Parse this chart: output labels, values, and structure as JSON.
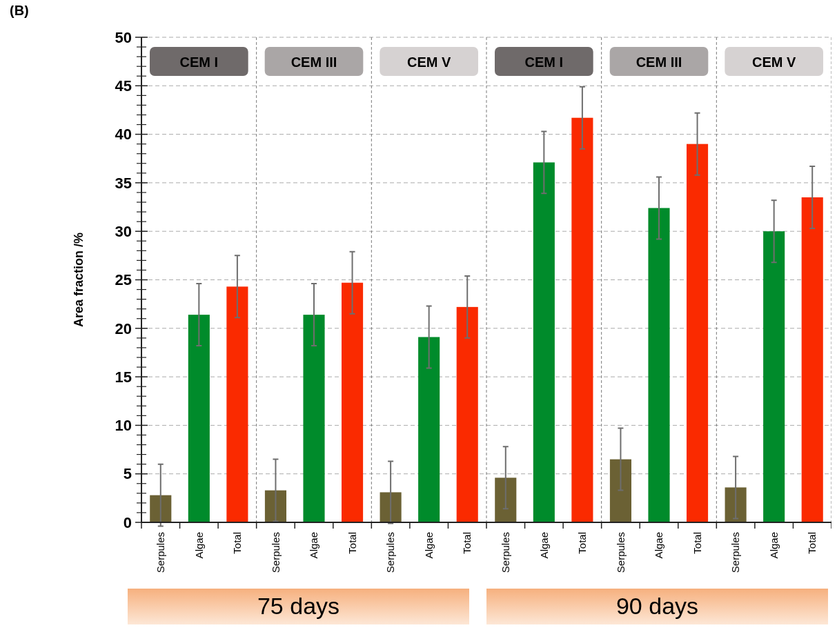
{
  "chart_data": {
    "type": "bar",
    "ylabel": "Area fraction /%",
    "categories": [
      "Serpules",
      "Algae",
      "Total",
      "Serpules",
      "Algae",
      "Total",
      "Serpules",
      "Algae",
      "Total",
      "Serpules",
      "Algae",
      "Total",
      "Serpules",
      "Algae",
      "Total",
      "Serpules",
      "Algae",
      "Total"
    ],
    "values": [
      2.8,
      21.4,
      24.3,
      3.3,
      21.4,
      24.7,
      3.1,
      19.1,
      22.2,
      4.6,
      37.1,
      41.7,
      6.5,
      32.4,
      39.0,
      3.6,
      30.0,
      33.5
    ],
    "errors": [
      3.2,
      3.2,
      3.2,
      3.2,
      3.2,
      3.2,
      3.2,
      3.2,
      3.2,
      3.2,
      3.2,
      3.2,
      3.2,
      3.2,
      3.2,
      3.2,
      3.2,
      3.2
    ],
    "colors": [
      "#6b6134",
      "#008b2b",
      "#fa2a00",
      "#6b6134",
      "#008b2b",
      "#fa2a00",
      "#6b6134",
      "#008b2b",
      "#fa2a00",
      "#6b6134",
      "#008b2b",
      "#fa2a00",
      "#6b6134",
      "#008b2b",
      "#fa2a00",
      "#6b6134",
      "#008b2b",
      "#fa2a00"
    ],
    "ylim": [
      0,
      50
    ],
    "yticks": [
      0,
      5,
      10,
      15,
      20,
      25,
      30,
      35,
      40,
      45,
      50
    ],
    "grid": "y",
    "annotations": [
      "(B)",
      "CEM I",
      "CEM III",
      "CEM V",
      "CEM I",
      "CEM III",
      "CEM V",
      "75 days",
      "90 days"
    ]
  }
}
